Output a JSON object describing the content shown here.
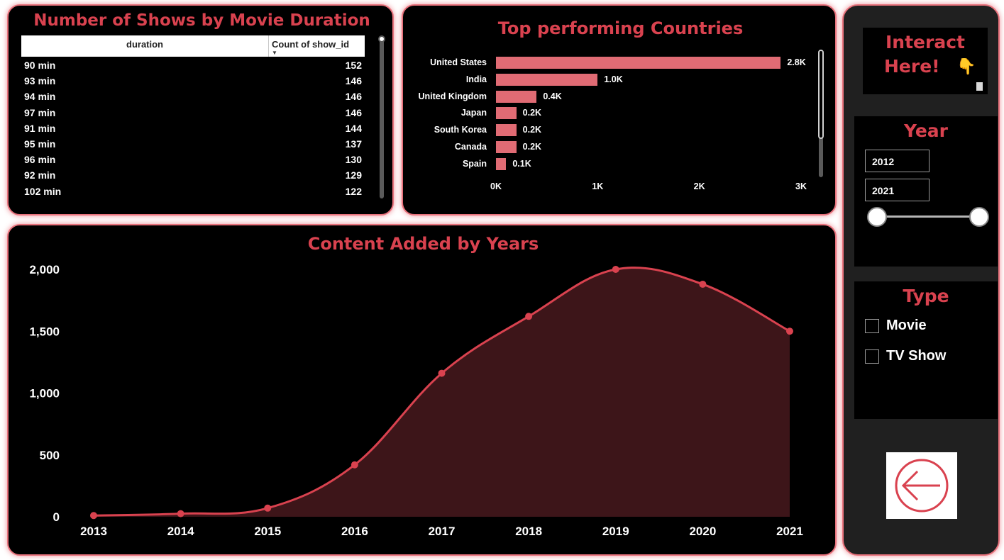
{
  "duration_table": {
    "title": "Number of Shows by Movie Duration",
    "col_duration": "duration",
    "col_count": "Count of show_id",
    "sort_indicator": "▼",
    "rows": [
      {
        "duration": "90 min",
        "count": "152"
      },
      {
        "duration": "93 min",
        "count": "146"
      },
      {
        "duration": "94 min",
        "count": "146"
      },
      {
        "duration": "97 min",
        "count": "146"
      },
      {
        "duration": "91 min",
        "count": "144"
      },
      {
        "duration": "95 min",
        "count": "137"
      },
      {
        "duration": "96 min",
        "count": "130"
      },
      {
        "duration": "92 min",
        "count": "129"
      },
      {
        "duration": "102 min",
        "count": "122"
      }
    ]
  },
  "countries_chart": {
    "title": "Top performing Countries",
    "bar_color": "#e06b74",
    "countries": [
      "United States",
      "India",
      "United Kingdom",
      "Japan",
      "South Korea",
      "Canada",
      "Spain"
    ],
    "values": [
      2.8,
      1.0,
      0.4,
      0.2,
      0.2,
      0.2,
      0.1
    ],
    "value_labels": [
      "2.8K",
      "1.0K",
      "0.4K",
      "0.2K",
      "0.2K",
      "0.2K",
      "0.1K"
    ],
    "x_ticks": [
      "0K",
      "1K",
      "2K",
      "3K"
    ],
    "x_max": 3
  },
  "chart_data": {
    "type": "area",
    "title": "Content Added by Years",
    "x": [
      "2013",
      "2014",
      "2015",
      "2016",
      "2017",
      "2018",
      "2019",
      "2020",
      "2021"
    ],
    "values": [
      10,
      25,
      70,
      420,
      1160,
      1620,
      2000,
      1880,
      1500
    ],
    "y_ticks": [
      "0",
      "500",
      "1,000",
      "1,500",
      "2,000"
    ],
    "ylim": [
      0,
      2000
    ],
    "line_color": "#d9424f",
    "fill_color": "#3d1519",
    "grid": false
  },
  "sidebar": {
    "interact_title": "Interact",
    "interact_title2": "Here!",
    "interact_icon": "pointing-down-hand",
    "year_title": "Year",
    "year_from": "2012",
    "year_to": "2021",
    "type_title": "Type",
    "type_options": [
      "Movie",
      "TV Show"
    ],
    "back_icon": "left-arrow-circle"
  },
  "colors": {
    "accent": "#d9424f",
    "panel_border": "#e8727c",
    "background": "#000000"
  }
}
